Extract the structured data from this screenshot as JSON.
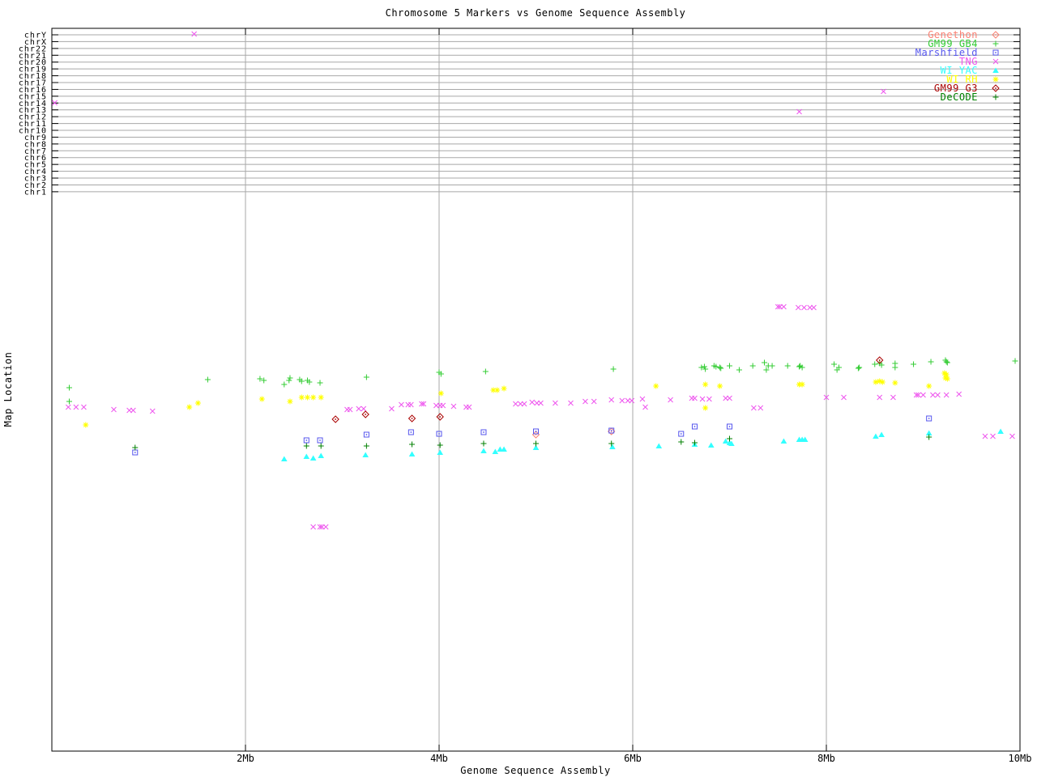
{
  "chart_data": {
    "type": "scatter",
    "title": "Chromosome 5 Markers vs Genome Sequence Assembly",
    "xlabel": "Genome Sequence Assembly",
    "ylabel": "Map Location",
    "x_units": "Mb",
    "xlim": [
      0,
      10
    ],
    "x_ticks": [
      {
        "value": 2,
        "label": "2Mb"
      },
      {
        "value": 4,
        "label": "4Mb"
      },
      {
        "value": 6,
        "label": "6Mb"
      },
      {
        "value": 8,
        "label": "8Mb"
      },
      {
        "value": 10,
        "label": "10Mb"
      }
    ],
    "y_axis_note": "Map Location axis has no numeric ticks; point y-values given in screen pixels. Top band rows are whole-genome chromosome lanes.",
    "chromosome_rows": [
      "chrY",
      "chrX",
      "chr22",
      "chr21",
      "chr20",
      "chr19",
      "chr18",
      "chr17",
      "chr16",
      "chr15",
      "chr14",
      "chr13",
      "chr12",
      "chr11",
      "chr10",
      "chr9",
      "chr8",
      "chr7",
      "chr6",
      "chr5",
      "chr4",
      "chr3",
      "chr2",
      "chr1"
    ],
    "grid_color": "#a8a8a8",
    "legend_position": "top-right-inside",
    "series": [
      {
        "name": "Genethon",
        "color": "#fa8072",
        "marker": "diamond-dot",
        "points": [
          [
            5.0,
            537
          ],
          [
            5.78,
            533
          ]
        ]
      },
      {
        "name": "GM99 GB4",
        "color": "#33cc33",
        "marker": "plus",
        "points": [
          [
            0.18,
            479
          ],
          [
            0.18,
            496
          ],
          [
            1.61,
            469
          ],
          [
            2.15,
            468
          ],
          [
            2.19,
            470
          ],
          [
            2.4,
            475
          ],
          [
            2.45,
            470
          ],
          [
            2.46,
            467
          ],
          [
            2.56,
            469
          ],
          [
            2.58,
            471
          ],
          [
            2.64,
            470
          ],
          [
            2.66,
            472
          ],
          [
            2.77,
            473
          ],
          [
            3.25,
            466
          ],
          [
            4.0,
            460
          ],
          [
            4.02,
            462
          ],
          [
            4.48,
            459
          ],
          [
            5.8,
            456
          ],
          [
            6.71,
            454
          ],
          [
            6.74,
            453
          ],
          [
            6.75,
            456
          ],
          [
            6.84,
            452
          ],
          [
            6.86,
            453
          ],
          [
            6.9,
            454
          ],
          [
            6.91,
            455
          ],
          [
            7.0,
            452
          ],
          [
            7.1,
            457
          ],
          [
            7.24,
            452
          ],
          [
            7.36,
            448
          ],
          [
            7.38,
            457
          ],
          [
            7.4,
            452
          ],
          [
            7.44,
            452
          ],
          [
            7.6,
            452
          ],
          [
            7.72,
            453
          ],
          [
            7.73,
            452
          ],
          [
            7.75,
            454
          ],
          [
            8.08,
            450
          ],
          [
            8.11,
            457
          ],
          [
            8.13,
            454
          ],
          [
            8.33,
            455
          ],
          [
            8.34,
            454
          ],
          [
            8.5,
            450
          ],
          [
            8.55,
            449
          ],
          [
            8.57,
            451
          ],
          [
            8.71,
            449
          ],
          [
            8.71,
            454
          ],
          [
            8.9,
            450
          ],
          [
            9.08,
            447
          ],
          [
            9.23,
            445
          ],
          [
            9.24,
            447
          ],
          [
            9.25,
            448
          ],
          [
            9.95,
            446
          ]
        ]
      },
      {
        "name": "Marshfield",
        "color": "#5555ee",
        "marker": "square-dot",
        "points": [
          [
            0.86,
            559
          ],
          [
            2.63,
            544
          ],
          [
            2.77,
            544
          ],
          [
            3.25,
            537
          ],
          [
            3.71,
            534
          ],
          [
            4.0,
            536
          ],
          [
            4.46,
            534
          ],
          [
            5.0,
            533
          ],
          [
            5.78,
            532
          ],
          [
            6.5,
            536
          ],
          [
            6.64,
            527
          ],
          [
            7.0,
            527
          ],
          [
            9.06,
            517
          ]
        ]
      },
      {
        "name": "TNG",
        "color": "#ee55ee",
        "marker": "cross",
        "points": [
          [
            1.47,
            42
          ],
          [
            0.03,
            127
          ],
          [
            8.59,
            113
          ],
          [
            7.72,
            138
          ],
          [
            7.5,
            379
          ],
          [
            7.52,
            379
          ],
          [
            7.56,
            379
          ],
          [
            7.71,
            380
          ],
          [
            7.77,
            380
          ],
          [
            7.83,
            380
          ],
          [
            7.87,
            380
          ],
          [
            0.17,
            503
          ],
          [
            0.25,
            503
          ],
          [
            0.33,
            503
          ],
          [
            0.64,
            506
          ],
          [
            0.8,
            507
          ],
          [
            0.84,
            507
          ],
          [
            1.04,
            508
          ],
          [
            3.05,
            506
          ],
          [
            3.08,
            506
          ],
          [
            3.17,
            505
          ],
          [
            3.22,
            505
          ],
          [
            3.51,
            505
          ],
          [
            3.61,
            500
          ],
          [
            3.68,
            500
          ],
          [
            3.71,
            500
          ],
          [
            3.82,
            499
          ],
          [
            3.84,
            499
          ],
          [
            3.97,
            501
          ],
          [
            4.01,
            501
          ],
          [
            4.04,
            501
          ],
          [
            4.15,
            502
          ],
          [
            4.28,
            503
          ],
          [
            4.31,
            503
          ],
          [
            4.79,
            499
          ],
          [
            4.84,
            499
          ],
          [
            4.88,
            499
          ],
          [
            4.96,
            497
          ],
          [
            5.01,
            498
          ],
          [
            5.05,
            498
          ],
          [
            5.2,
            498
          ],
          [
            5.36,
            498
          ],
          [
            5.51,
            496
          ],
          [
            5.6,
            496
          ],
          [
            5.78,
            494
          ],
          [
            5.89,
            495
          ],
          [
            5.95,
            495
          ],
          [
            5.99,
            495
          ],
          [
            6.1,
            493
          ],
          [
            6.13,
            503
          ],
          [
            6.39,
            494
          ],
          [
            6.61,
            492
          ],
          [
            6.64,
            492
          ],
          [
            6.72,
            493
          ],
          [
            6.79,
            493
          ],
          [
            6.96,
            492
          ],
          [
            7.0,
            492
          ],
          [
            7.25,
            504
          ],
          [
            7.32,
            504
          ],
          [
            8.0,
            491
          ],
          [
            8.18,
            491
          ],
          [
            8.55,
            491
          ],
          [
            8.69,
            491
          ],
          [
            8.93,
            488
          ],
          [
            8.95,
            488
          ],
          [
            9.0,
            488
          ],
          [
            9.1,
            488
          ],
          [
            9.15,
            488
          ],
          [
            9.24,
            488
          ],
          [
            9.37,
            487
          ],
          [
            2.7,
            651
          ],
          [
            2.77,
            651
          ],
          [
            2.79,
            651
          ],
          [
            2.83,
            651
          ],
          [
            9.64,
            539
          ],
          [
            9.72,
            539
          ],
          [
            9.92,
            539
          ]
        ]
      },
      {
        "name": "WI YAC",
        "color": "#33ffff",
        "marker": "triangle",
        "points": [
          [
            2.4,
            567
          ],
          [
            2.63,
            564
          ],
          [
            2.7,
            566
          ],
          [
            2.78,
            563
          ],
          [
            3.24,
            562
          ],
          [
            3.72,
            561
          ],
          [
            4.01,
            559
          ],
          [
            4.46,
            557
          ],
          [
            4.58,
            558
          ],
          [
            4.63,
            555
          ],
          [
            4.67,
            555
          ],
          [
            5.0,
            553
          ],
          [
            5.79,
            552
          ],
          [
            6.27,
            551
          ],
          [
            6.64,
            549
          ],
          [
            6.81,
            550
          ],
          [
            6.96,
            545
          ],
          [
            7.0,
            547
          ],
          [
            7.02,
            548
          ],
          [
            7.56,
            545
          ],
          [
            7.72,
            543
          ],
          [
            7.75,
            543
          ],
          [
            7.78,
            543
          ],
          [
            8.51,
            539
          ],
          [
            8.57,
            537
          ],
          [
            9.06,
            535
          ],
          [
            9.8,
            533
          ]
        ]
      },
      {
        "name": "WI RH",
        "color": "#ffff00",
        "marker": "asterisk",
        "points": [
          [
            0.35,
            525
          ],
          [
            1.42,
            503
          ],
          [
            1.51,
            498
          ],
          [
            2.17,
            493
          ],
          [
            2.46,
            496
          ],
          [
            2.58,
            491
          ],
          [
            2.64,
            491
          ],
          [
            2.7,
            491
          ],
          [
            2.78,
            491
          ],
          [
            4.02,
            486
          ],
          [
            4.56,
            482
          ],
          [
            4.6,
            482
          ],
          [
            4.67,
            480
          ],
          [
            6.24,
            477
          ],
          [
            6.75,
            475
          ],
          [
            6.9,
            477
          ],
          [
            6.75,
            504
          ],
          [
            7.72,
            475
          ],
          [
            7.75,
            475
          ],
          [
            8.51,
            472
          ],
          [
            8.55,
            471
          ],
          [
            8.58,
            472
          ],
          [
            8.71,
            473
          ],
          [
            9.06,
            477
          ],
          [
            9.22,
            461
          ],
          [
            9.24,
            463
          ],
          [
            9.23,
            467
          ],
          [
            9.25,
            468
          ]
        ]
      },
      {
        "name": "GM99 G3",
        "color": "#aa0000",
        "marker": "diamond-dot",
        "points": [
          [
            2.93,
            518
          ],
          [
            3.24,
            512
          ],
          [
            3.72,
            517
          ],
          [
            4.01,
            515
          ],
          [
            8.55,
            445
          ]
        ]
      },
      {
        "name": "DeCODE",
        "color": "#008000",
        "marker": "plus",
        "points": [
          [
            0.86,
            553
          ],
          [
            2.63,
            551
          ],
          [
            2.78,
            551
          ],
          [
            3.25,
            551
          ],
          [
            3.72,
            549
          ],
          [
            4.01,
            550
          ],
          [
            4.46,
            548
          ],
          [
            5.0,
            548
          ],
          [
            5.78,
            548
          ],
          [
            6.5,
            546
          ],
          [
            6.64,
            547
          ],
          [
            7.0,
            542
          ],
          [
            9.06,
            540
          ]
        ]
      }
    ]
  }
}
